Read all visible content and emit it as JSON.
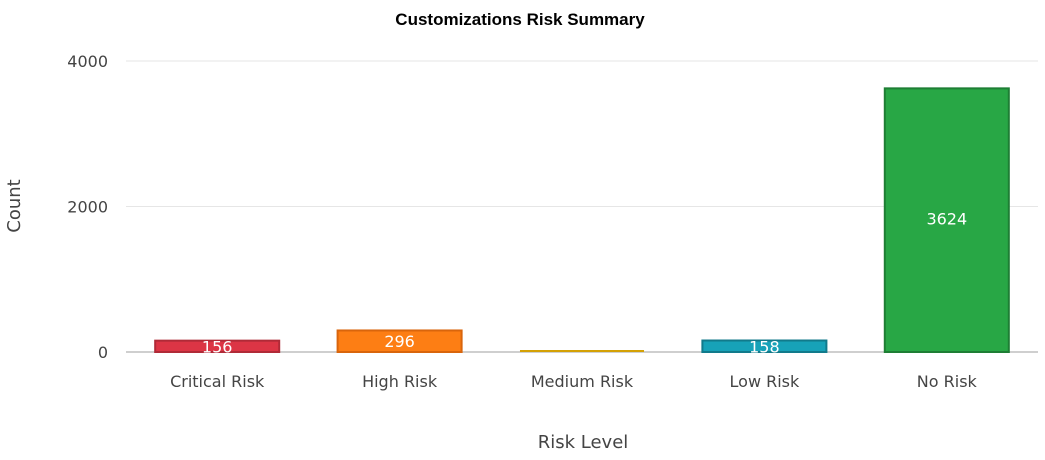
{
  "chart_data": {
    "type": "bar",
    "title": "Customizations Risk Summary",
    "xlabel": "Risk Level",
    "ylabel": "Count",
    "categories": [
      "Critical Risk",
      "High Risk",
      "Medium Risk",
      "Low Risk",
      "No Risk"
    ],
    "values": [
      156,
      296,
      0,
      158,
      3624
    ],
    "data_labels": [
      "156",
      "296",
      "",
      "158",
      "3624"
    ],
    "y_ticks": [
      0,
      2000,
      4000
    ],
    "y_tick_labels": [
      "0",
      "2000",
      "4000"
    ],
    "ylim": [
      0,
      4000
    ],
    "grid": true,
    "legend": "none",
    "colors": {
      "fill": [
        "#dc3545",
        "#fd7e14",
        "#ffc107",
        "#17a2b8",
        "#28a745"
      ],
      "stroke": [
        "#b02a37",
        "#d9650c",
        "#d4a105",
        "#117a8b",
        "#1e7e34"
      ]
    }
  }
}
